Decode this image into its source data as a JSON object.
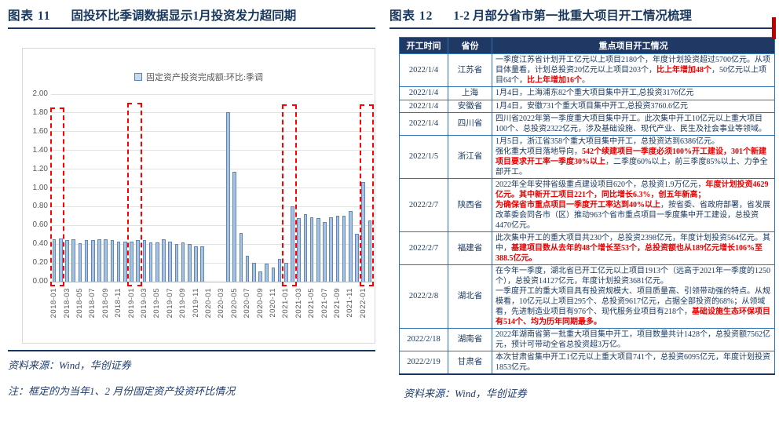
{
  "colors": {
    "accent_navy": "#17375e",
    "table_header_bg": "#1f3864",
    "table_border": "#2e74b5",
    "emphasis_red": "#e80000",
    "bar_fill": "#a9c2e0",
    "bar_border": "#5e87b8",
    "highlight_box": "#fe0000",
    "edge_accent": "#c00000",
    "axis_text": "#595959"
  },
  "figure11": {
    "label": "图表 11",
    "title": "固投环比季调数据显示1月投资发力超同期",
    "source": "资料来源：Wind，华创证券",
    "note": "注：框定的为当年1、2 月份固定资产投资环比情况",
    "chart_data": {
      "type": "bar",
      "legend": "固定资产投资完成额:环比:季调",
      "legend_position": "top",
      "grid": true,
      "ylim": [
        0,
        2
      ],
      "ytick_step": 0.2,
      "ytick_labels": [
        "2.00",
        "1.80",
        "1.60",
        "1.40",
        "1.20",
        "1.00",
        "0.80",
        "0.60",
        "0.40",
        "0.20",
        "0.00"
      ],
      "x": [
        "2018-01",
        "2018-02",
        "2018-03",
        "2018-04",
        "2018-05",
        "2018-06",
        "2018-07",
        "2018-08",
        "2018-09",
        "2018-10",
        "2018-11",
        "2018-12",
        "2019-01",
        "2019-02",
        "2019-03",
        "2019-04",
        "2019-05",
        "2019-06",
        "2019-07",
        "2019-08",
        "2019-09",
        "2019-10",
        "2019-11",
        "2019-12",
        "2020-01",
        "2020-02",
        "2020-03",
        "2020-04",
        "2020-05",
        "2020-06",
        "2020-07",
        "2020-08",
        "2020-09",
        "2020-10",
        "2020-11",
        "2020-12",
        "2021-01",
        "2021-02",
        "2021-03",
        "2021-04",
        "2021-05",
        "2021-06",
        "2021-07",
        "2021-08",
        "2021-09",
        "2021-10",
        "2021-11",
        "2021-12",
        "2022-01",
        "2022-02"
      ],
      "values": [
        0.45,
        0.46,
        0.44,
        0.45,
        0.41,
        0.44,
        0.44,
        0.45,
        0.45,
        0.44,
        0.43,
        0.43,
        0.43,
        0.44,
        0.44,
        0.42,
        0.42,
        0.45,
        0.43,
        0.4,
        0.42,
        0.4,
        0.38,
        0.38,
        null,
        null,
        null,
        1.81,
        1.17,
        0.52,
        0.28,
        0.2,
        0.11,
        0.19,
        0.15,
        0.24,
        0.2,
        0.8,
        0.68,
        0.72,
        0.69,
        0.68,
        0.64,
        0.69,
        0.7,
        0.7,
        0.75,
        0.51,
        1.06,
        0.65
      ],
      "xtick_labels": [
        "2018-01",
        "2018-03",
        "2018-05",
        "2018-07",
        "2018-09",
        "2018-11",
        "2019-01",
        "2019-03",
        "2019-05",
        "2019-07",
        "2019-09",
        "2019-11",
        "2020-01",
        "2020-03",
        "2020-05",
        "2020-07",
        "2020-09",
        "2020-11",
        "2021-01",
        "2021-03",
        "2021-05",
        "2021-07",
        "2021-09",
        "2021-11",
        "2022-01"
      ],
      "highlight_boxes": [
        {
          "from_index": 0,
          "to_index": 1,
          "top": 1.86,
          "label": "2018年1-2月"
        },
        {
          "from_index": 12,
          "to_index": 13,
          "top": 1.91,
          "label": "2019年1-2月"
        },
        {
          "from_index": 36,
          "to_index": 37,
          "top": 1.89,
          "label": "2021年1-2月"
        },
        {
          "from_index": 48,
          "to_index": 49,
          "top": 1.89,
          "label": "2022年1-2月"
        }
      ]
    }
  },
  "figure12": {
    "label": "图表 12",
    "title": "1-2 月部分省市第一批重大项目开工情况梳理",
    "source": "资料来源：Wind，华创证券",
    "table": {
      "headers": [
        "开工时间",
        "省份",
        "重点项目开工情况"
      ],
      "rows": [
        {
          "date": "2022/1/4",
          "province": "江苏省",
          "segments": [
            {
              "text": "一季度江苏省计划开工亿元以上项目2180个，年度计划投资超过5700亿元。从项目体量看，计划总投资20亿元以上项目203个，",
              "em": false
            },
            {
              "text": "比上年增加48个",
              "em": true
            },
            {
              "text": "，50亿元以上项目64个，",
              "em": false
            },
            {
              "text": "比上年增加16个",
              "em": true
            },
            {
              "text": "。",
              "em": false
            }
          ]
        },
        {
          "date": "2022/1/4",
          "province": "上海",
          "segments": [
            {
              "text": "1月4日，上海浦东82个重大项目集中开工,总投资3176亿元",
              "em": false
            }
          ]
        },
        {
          "date": "2022/1/4",
          "province": "安徽省",
          "segments": [
            {
              "text": "1月4日，安徽731个重大项目集中开工,总投资3760.6亿元",
              "em": false
            }
          ]
        },
        {
          "date": "2022/1/4",
          "province": "四川省",
          "segments": [
            {
              "text": "四川省2022年第一季度重大项目集中开工。此次集中开工10亿元以上重大项目100个、总投资2322亿元，涉及基础设施、现代产业、民生及社会事业等领域。",
              "em": false
            }
          ]
        },
        {
          "date": "2022/1/5",
          "province": "浙江省",
          "segments": [
            {
              "text": "1月5日，浙江省358个重大项目集中开工，总投资达到6386亿元。\n强化重大项目落地导向，",
              "em": false
            },
            {
              "text": "542个续建项目一季度必须100%开工建设，301个新建项目要求开工率一季度30%以上",
              "em": true
            },
            {
              "text": "，二季度60%以上，前三季度85%以上、力争全部开工。",
              "em": false
            }
          ]
        },
        {
          "date": "2022/2/7",
          "province": "陕西省",
          "segments": [
            {
              "text": "2022年全年安排省级重点建设项目620个，总投资1.9万亿元，",
              "em": false
            },
            {
              "text": "年度计划投资4629亿元。其中新开工项目221个，同比增长6.3%，创五年新高；",
              "em": true
            },
            {
              "text": "\n",
              "em": false
            },
            {
              "text": "为确保省市重点项目一季度开工率达到40%以上",
              "em": true
            },
            {
              "text": "，按省委、省政府部署，省发展改革委会同各市（区）推动963个省市重点项目一季度集中开工建设，总投资4470亿元。",
              "em": false
            }
          ]
        },
        {
          "date": "2022/2/7",
          "province": "福建省",
          "segments": [
            {
              "text": "此次集中开工的重大项目共230个，总投资2398亿元，年度计划投资564亿元。其中，",
              "em": false
            },
            {
              "text": "基建项目数从去年的48个增长至53个，总投资额也从189亿元增长106%至388.5亿元。",
              "em": true
            }
          ]
        },
        {
          "date": "2022/2/8",
          "province": "湖北省",
          "segments": [
            {
              "text": "在今年一季度，湖北省已开工亿元以上项目1913个（远高于2021年一季度的1250个），总投资14127亿元，年度计划投资3681亿元。\n一季度开工的重大项目具有投资规模大、项目质量高、引领带动强的特点。从规模看，10亿元以上项目295个、总投资9617亿元，占据全部投资的68%；从领域看，先进制造业项目有976个、现代服务业项目有218个，",
              "em": false
            },
            {
              "text": "基础设施生态环保项目有514个、均为历年同期最多。",
              "em": true
            }
          ]
        },
        {
          "date": "2022/2/18",
          "province": "湖南省",
          "segments": [
            {
              "text": "2022年湖南省第一批重大项目集中开工，项目数量共计1428个，总投资额7562亿元，预计可带动全省总投资超3万亿。",
              "em": false
            }
          ]
        },
        {
          "date": "2022/2/19",
          "province": "甘肃省",
          "segments": [
            {
              "text": "本次甘肃省集中开工1亿元以上重大项目741个，总投资6095亿元，年度计划投资1853亿元。",
              "em": false
            }
          ]
        }
      ]
    }
  }
}
